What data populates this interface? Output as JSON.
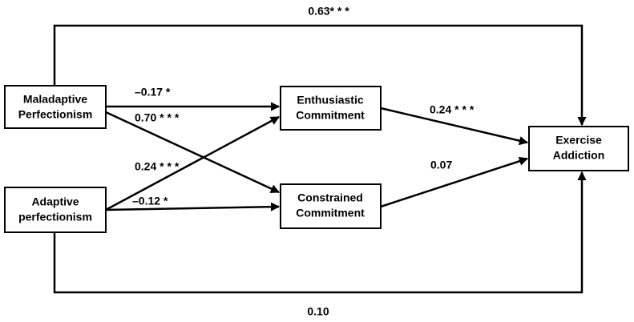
{
  "nodes": [
    {
      "lines": [
        "Maladaptive",
        "Perfectionism"
      ]
    },
    {
      "lines": [
        "Adaptive",
        "perfectionism"
      ]
    },
    {
      "lines": [
        "Enthusiastic",
        "Commitment"
      ]
    },
    {
      "lines": [
        "Constrained",
        "Commitment"
      ]
    },
    {
      "lines": [
        "Exercise",
        "Addiction"
      ]
    }
  ],
  "paths": [
    {
      "label": "0.63* * *"
    },
    {
      "label": "–0.17 *"
    },
    {
      "label": "0.70 * * *"
    },
    {
      "label": "0.24 * * *"
    },
    {
      "label": "–0.12 *"
    },
    {
      "label": "0.24 * * *"
    },
    {
      "label": "0.07"
    },
    {
      "label": "0.10"
    }
  ]
}
